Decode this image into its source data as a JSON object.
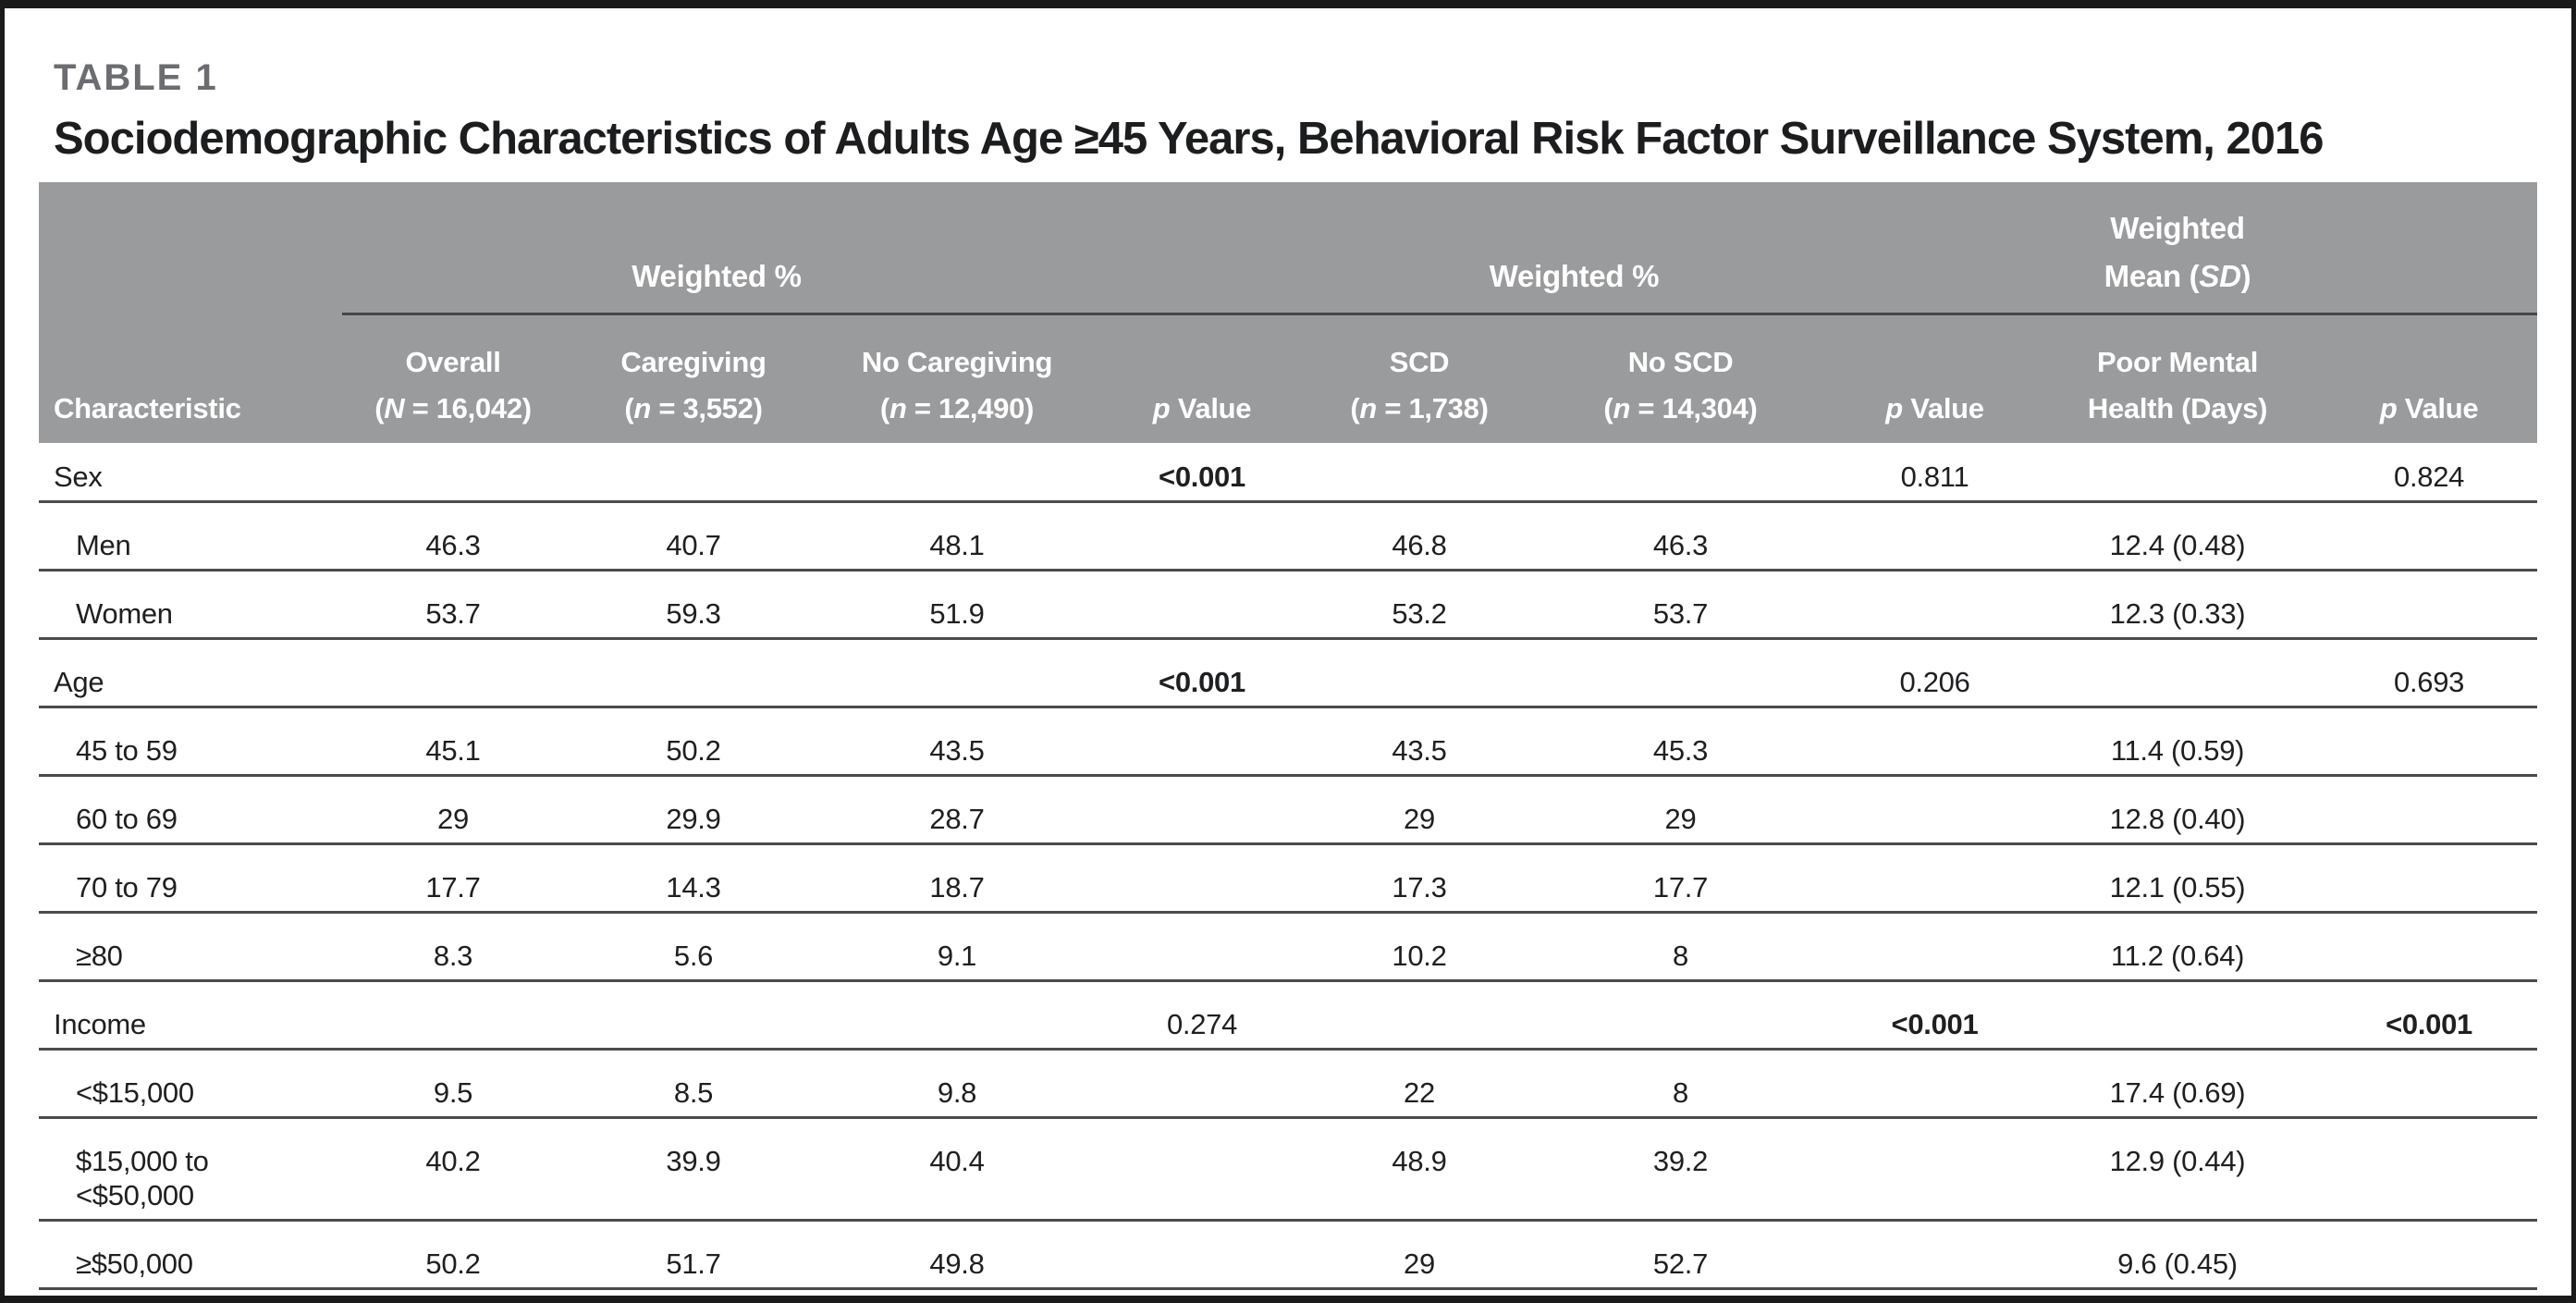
{
  "page": {
    "table_label": "TABLE 1",
    "title": "Sociodemographic Characteristics of Adults Age ≥45 Years, Behavioral Risk Factor Surveillance System, 2016"
  },
  "colors": {
    "header_bg": "#9a9b9d",
    "header_text": "#ffffff",
    "row_border": "#4a4b4d",
    "frame": "#1a1a1b",
    "table_label_gray": "#6b6d70",
    "body_text": "#1e1f21"
  },
  "header": {
    "spanners": [
      {
        "label": "Weighted %"
      },
      {
        "label": "Weighted %"
      },
      {
        "line1": "Weighted",
        "line2": [
          {
            "t": "Mean ("
          },
          {
            "t": "SD",
            "i": true
          },
          {
            "t": ")"
          }
        ]
      }
    ],
    "columns": [
      {
        "line1": "",
        "line2": [
          {
            "t": "Characteristic"
          }
        ]
      },
      {
        "line1": "Overall",
        "line2": [
          {
            "t": "("
          },
          {
            "t": "N",
            "i": true
          },
          {
            "t": " = 16,042)"
          }
        ]
      },
      {
        "line1": "Caregiving",
        "line2": [
          {
            "t": "("
          },
          {
            "t": "n",
            "i": true
          },
          {
            "t": " = 3,552)"
          }
        ]
      },
      {
        "line1": "No Caregiving",
        "line2": [
          {
            "t": "("
          },
          {
            "t": "n",
            "i": true
          },
          {
            "t": " = 12,490)"
          }
        ]
      },
      {
        "line1": "",
        "line2": [
          {
            "t": "p",
            "i": true
          },
          {
            "t": " Value"
          }
        ]
      },
      {
        "line1": "SCD",
        "line2": [
          {
            "t": "("
          },
          {
            "t": "n",
            "i": true
          },
          {
            "t": " = 1,738)"
          }
        ]
      },
      {
        "line1": "No SCD",
        "line2": [
          {
            "t": "("
          },
          {
            "t": "n",
            "i": true
          },
          {
            "t": " = 14,304)"
          }
        ]
      },
      {
        "line1": "",
        "line2": [
          {
            "t": "p",
            "i": true
          },
          {
            "t": " Value"
          }
        ]
      },
      {
        "line1": "Poor Mental",
        "line2": [
          {
            "t": "Health (Days)"
          }
        ]
      },
      {
        "line1": "",
        "line2": [
          {
            "t": "p",
            "i": true
          },
          {
            "t": " Value"
          }
        ]
      }
    ]
  },
  "rows": [
    {
      "type": "category",
      "label": "Sex",
      "p_caregiving": "<0.001",
      "p_scd": "0.811",
      "p_pmh": "0.824"
    },
    {
      "type": "sub",
      "label": "Men",
      "overall": "46.3",
      "caregiving": "40.7",
      "no_caregiving": "48.1",
      "scd": "46.8",
      "no_scd": "46.3",
      "pmh": "12.4 (0.48)"
    },
    {
      "type": "sub",
      "label": "Women",
      "overall": "53.7",
      "caregiving": "59.3",
      "no_caregiving": "51.9",
      "scd": "53.2",
      "no_scd": "53.7",
      "pmh": "12.3 (0.33)"
    },
    {
      "type": "category",
      "label": "Age",
      "p_caregiving": "<0.001",
      "p_scd": "0.206",
      "p_pmh": "0.693"
    },
    {
      "type": "sub",
      "label": "45 to 59",
      "overall": "45.1",
      "caregiving": "50.2",
      "no_caregiving": "43.5",
      "scd": "43.5",
      "no_scd": "45.3",
      "pmh": "11.4 (0.59)"
    },
    {
      "type": "sub",
      "label": "60 to 69",
      "overall": "29",
      "caregiving": "29.9",
      "no_caregiving": "28.7",
      "scd": "29",
      "no_scd": "29",
      "pmh": "12.8 (0.40)"
    },
    {
      "type": "sub",
      "label": "70 to 79",
      "overall": "17.7",
      "caregiving": "14.3",
      "no_caregiving": "18.7",
      "scd": "17.3",
      "no_scd": "17.7",
      "pmh": "12.1 (0.55)"
    },
    {
      "type": "sub",
      "label": "≥80",
      "overall": "8.3",
      "caregiving": "5.6",
      "no_caregiving": "9.1",
      "scd": "10.2",
      "no_scd": "8",
      "pmh": "11.2 (0.64)"
    },
    {
      "type": "category",
      "label": "Income",
      "p_caregiving": "0.274",
      "p_scd": "<0.001",
      "p_pmh": "<0.001"
    },
    {
      "type": "sub",
      "label": "<$15,000",
      "overall": "9.5",
      "caregiving": "8.5",
      "no_caregiving": "9.8",
      "scd": "22",
      "no_scd": "8",
      "pmh": "17.4 (0.69)"
    },
    {
      "type": "sub",
      "label": "$15,000 to",
      "label2": "<$50,000",
      "overall": "40.2",
      "caregiving": "39.9",
      "no_caregiving": "40.4",
      "scd": "48.9",
      "no_scd": "39.2",
      "pmh": "12.9 (0.44)"
    },
    {
      "type": "sub",
      "label": "≥$50,000",
      "overall": "50.2",
      "caregiving": "51.7",
      "no_caregiving": "49.8",
      "scd": "29",
      "no_scd": "52.7",
      "pmh": "9.6 (0.45)"
    }
  ]
}
